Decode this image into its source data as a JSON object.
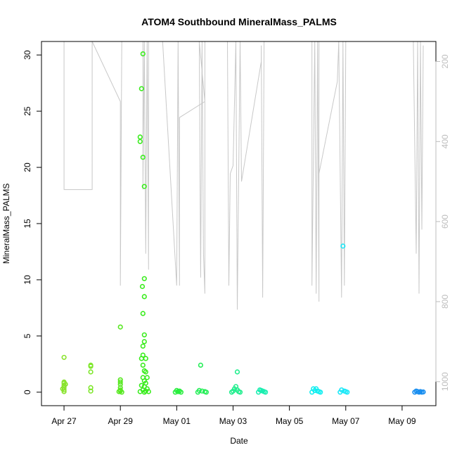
{
  "chart_data": {
    "type": "scatter",
    "title": "ATOM4 Southbound MineralMass_PALMS",
    "xlabel": "Date",
    "ylabel": "MineralMass_PALMS",
    "x_ticks": [
      "Apr 27",
      "Apr 29",
      "May 01",
      "May 03",
      "May 05",
      "May 07",
      "May 09"
    ],
    "x_tick_days": [
      0,
      2,
      4,
      6,
      8,
      10,
      12
    ],
    "xlim_days": [
      -0.8,
      13.2
    ],
    "ylim": [
      -1.2,
      31.2
    ],
    "y_ticks": [
      0,
      5,
      10,
      15,
      20,
      25,
      30
    ],
    "right_axis": {
      "ticks": [
        200,
        400,
        600,
        800,
        1000
      ],
      "range": [
        150,
        1060
      ],
      "reversed": true,
      "color": "#bdbdbd"
    },
    "grid": false,
    "marker": "open-circle",
    "series": [
      {
        "color": "#88e32b",
        "points": [
          [
            0.0,
            3.1
          ],
          [
            0.0,
            0.9
          ],
          [
            0.0,
            0.8
          ],
          [
            0.0,
            0.6
          ],
          [
            0.0,
            0.4
          ],
          [
            0.0,
            0.2
          ],
          [
            0.0,
            0.05
          ],
          [
            0.05,
            0.7
          ],
          [
            -0.05,
            0.3
          ]
        ]
      },
      {
        "color": "#7ee72a",
        "points": [
          [
            0.95,
            2.4
          ],
          [
            0.95,
            2.3
          ],
          [
            0.95,
            1.8
          ],
          [
            0.95,
            0.4
          ],
          [
            0.95,
            0.1
          ]
        ]
      },
      {
        "color": "#56e81f",
        "points": [
          [
            2.0,
            5.8
          ],
          [
            2.0,
            1.1
          ],
          [
            2.0,
            0.9
          ],
          [
            2.0,
            0.7
          ],
          [
            2.0,
            0.4
          ],
          [
            2.0,
            0.2
          ],
          [
            2.0,
            0.1
          ],
          [
            2.05,
            0.0
          ],
          [
            1.95,
            0.05
          ]
        ]
      },
      {
        "color": "#39ec1c",
        "points": [
          [
            2.8,
            30.1
          ],
          [
            2.75,
            27.0
          ],
          [
            2.7,
            22.7
          ],
          [
            2.7,
            22.3
          ],
          [
            2.8,
            20.9
          ],
          [
            2.85,
            18.3
          ],
          [
            2.85,
            10.1
          ],
          [
            2.78,
            9.4
          ],
          [
            2.85,
            8.5
          ],
          [
            2.8,
            7.0
          ],
          [
            2.85,
            5.1
          ],
          [
            2.85,
            4.5
          ],
          [
            2.8,
            4.1
          ],
          [
            2.8,
            3.3
          ],
          [
            2.75,
            3.0
          ],
          [
            2.9,
            3.0
          ],
          [
            2.8,
            2.4
          ],
          [
            2.85,
            1.9
          ],
          [
            2.9,
            1.8
          ],
          [
            2.8,
            1.3
          ],
          [
            2.95,
            1.3
          ],
          [
            2.85,
            1.0
          ],
          [
            2.9,
            0.8
          ],
          [
            2.75,
            0.6
          ],
          [
            2.85,
            0.5
          ],
          [
            2.95,
            0.3
          ],
          [
            2.8,
            0.2
          ],
          [
            2.9,
            0.1
          ],
          [
            3.0,
            0.05
          ],
          [
            2.7,
            0.05
          ],
          [
            2.85,
            0.0
          ]
        ]
      },
      {
        "color": "#26ee3c",
        "points": [
          [
            4.0,
            0.15
          ],
          [
            4.05,
            0.05
          ],
          [
            3.95,
            0.0
          ],
          [
            4.1,
            0.1
          ],
          [
            4.15,
            0.0
          ]
        ]
      },
      {
        "color": "#26ee58",
        "points": [
          [
            4.85,
            2.4
          ],
          [
            4.8,
            0.15
          ],
          [
            4.9,
            0.1
          ],
          [
            5.0,
            0.05
          ],
          [
            5.05,
            0.0
          ],
          [
            4.75,
            0.0
          ]
        ]
      },
      {
        "color": "#1fee8d",
        "points": [
          [
            6.15,
            1.8
          ],
          [
            6.1,
            0.5
          ],
          [
            6.05,
            0.3
          ],
          [
            6.15,
            0.2
          ],
          [
            6.0,
            0.1
          ],
          [
            6.2,
            0.05
          ],
          [
            6.25,
            0.0
          ],
          [
            5.95,
            0.0
          ]
        ]
      },
      {
        "color": "#1aeeb0",
        "points": [
          [
            6.95,
            0.2
          ],
          [
            7.0,
            0.15
          ],
          [
            7.05,
            0.1
          ],
          [
            7.1,
            0.05
          ],
          [
            6.9,
            0.0
          ],
          [
            7.15,
            0.0
          ]
        ]
      },
      {
        "color": "#11eef0",
        "points": [
          [
            8.85,
            0.3
          ],
          [
            8.95,
            0.3
          ],
          [
            8.9,
            0.15
          ],
          [
            9.0,
            0.1
          ],
          [
            9.05,
            0.05
          ],
          [
            8.8,
            0.0
          ],
          [
            9.1,
            0.0
          ]
        ]
      },
      {
        "color": "#1ae8f8",
        "points": [
          [
            9.9,
            13.0
          ],
          [
            9.85,
            0.2
          ],
          [
            9.95,
            0.1
          ],
          [
            10.0,
            0.05
          ],
          [
            10.05,
            0.0
          ],
          [
            9.8,
            0.0
          ]
        ]
      },
      {
        "color": "#1a8ff0",
        "points": [
          [
            12.5,
            0.1
          ],
          [
            12.55,
            0.05
          ],
          [
            12.6,
            0.0
          ],
          [
            12.65,
            0.05
          ],
          [
            12.7,
            0.0
          ],
          [
            12.45,
            0.0
          ],
          [
            12.75,
            0.02
          ]
        ]
      }
    ],
    "altitude_trace": {
      "color": "#c8c8c8",
      "points": [
        [
          0.0,
          150
        ],
        [
          0.0,
          520
        ],
        [
          1.0,
          520
        ],
        [
          1.0,
          150
        ],
        [
          1.0,
          150
        ],
        [
          2.0,
          300
        ],
        [
          2.0,
          760
        ],
        [
          2.05,
          150
        ],
        [
          2.8,
          150
        ],
        [
          2.8,
          520
        ],
        [
          2.85,
          150
        ],
        [
          2.9,
          680
        ],
        [
          2.95,
          150
        ],
        [
          3.0,
          720
        ],
        [
          3.0,
          150
        ],
        [
          3.5,
          150
        ],
        [
          4.0,
          760
        ],
        [
          4.05,
          150
        ],
        [
          4.1,
          760
        ],
        [
          4.1,
          340
        ],
        [
          5.0,
          300
        ],
        [
          4.8,
          150
        ],
        [
          4.85,
          740
        ],
        [
          4.9,
          150
        ],
        [
          4.95,
          680
        ],
        [
          5.0,
          780
        ],
        [
          5.0,
          150
        ],
        [
          5.8,
          150
        ],
        [
          5.85,
          760
        ],
        [
          5.9,
          480
        ],
        [
          6.0,
          460
        ],
        [
          6.1,
          150
        ],
        [
          6.15,
          820
        ],
        [
          6.25,
          150
        ],
        [
          6.3,
          500
        ],
        [
          7.0,
          200
        ],
        [
          7.0,
          160
        ],
        [
          7.05,
          790
        ],
        [
          7.1,
          150
        ],
        [
          8.8,
          150
        ],
        [
          8.8,
          760
        ],
        [
          8.9,
          150
        ],
        [
          8.95,
          780
        ],
        [
          9.0,
          150
        ],
        [
          9.05,
          800
        ],
        [
          9.05,
          150
        ],
        [
          9.05,
          480
        ],
        [
          9.7,
          250
        ],
        [
          9.75,
          150
        ],
        [
          9.85,
          790
        ],
        [
          9.9,
          150
        ],
        [
          9.95,
          760
        ],
        [
          10.0,
          150
        ],
        [
          12.4,
          150
        ],
        [
          12.5,
          680
        ],
        [
          12.55,
          150
        ],
        [
          12.6,
          780
        ],
        [
          12.65,
          150
        ],
        [
          12.7,
          620
        ],
        [
          12.75,
          160
        ]
      ]
    }
  }
}
